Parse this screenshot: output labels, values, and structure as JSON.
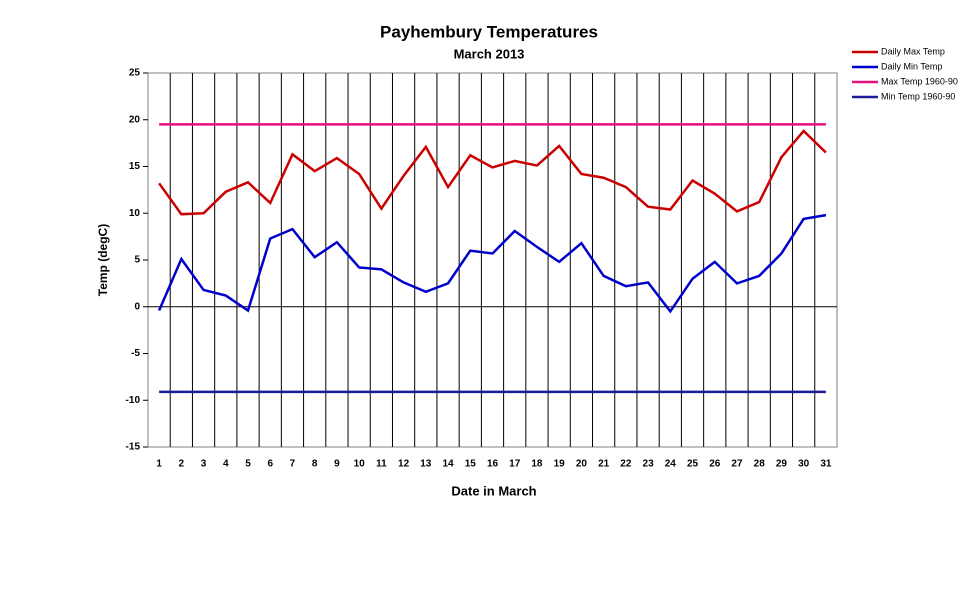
{
  "chart_data": {
    "type": "line",
    "title": "Payhembury Temperatures",
    "subtitle": "March 2013",
    "x_label": "Date in March",
    "y_label": "Temp (degC)",
    "categories": [
      "1",
      "2",
      "3",
      "4",
      "5",
      "6",
      "7",
      "8",
      "9",
      "10",
      "11",
      "12",
      "13",
      "14",
      "15",
      "16",
      "17",
      "18",
      "19",
      "20",
      "21",
      "22",
      "23",
      "24",
      "25",
      "26",
      "27",
      "28",
      "29",
      "30",
      "31"
    ],
    "series": [
      {
        "name": "Daily Max Temp",
        "color": "#cc0000",
        "values": [
          13.2,
          9.9,
          10.0,
          12.3,
          13.3,
          11.1,
          16.3,
          14.5,
          15.9,
          14.2,
          10.5,
          14.0,
          17.1,
          12.8,
          16.2,
          14.9,
          15.6,
          15.1,
          17.2,
          14.2,
          13.8,
          12.8,
          10.7,
          10.4,
          13.5,
          12.1,
          10.2,
          11.2,
          16.0,
          18.8,
          16.5
        ]
      },
      {
        "name": "Daily Min Temp",
        "color": "#0000cc",
        "values": [
          -0.4,
          5.1,
          1.8,
          1.2,
          -0.4,
          7.3,
          8.3,
          5.3,
          6.9,
          4.2,
          4.0,
          2.6,
          1.6,
          2.5,
          6.0,
          5.7,
          8.1,
          6.4,
          4.8,
          6.8,
          3.3,
          2.2,
          2.6,
          -0.5,
          3.0,
          4.8,
          2.5,
          3.3,
          5.7,
          9.4,
          9.8
        ]
      },
      {
        "name": "Max Temp 1960-90",
        "color": "#e8107f",
        "values": [
          19.5,
          19.5,
          19.5,
          19.5,
          19.5,
          19.5,
          19.5,
          19.5,
          19.5,
          19.5,
          19.5,
          19.5,
          19.5,
          19.5,
          19.5,
          19.5,
          19.5,
          19.5,
          19.5,
          19.5,
          19.5,
          19.5,
          19.5,
          19.5,
          19.5,
          19.5,
          19.5,
          19.5,
          19.5,
          19.5,
          19.5
        ]
      },
      {
        "name": "Min Temp 1960-90",
        "color": "#1a1a9a",
        "values": [
          -9.1,
          -9.1,
          -9.1,
          -9.1,
          -9.1,
          -9.1,
          -9.1,
          -9.1,
          -9.1,
          -9.1,
          -9.1,
          -9.1,
          -9.1,
          -9.1,
          -9.1,
          -9.1,
          -9.1,
          -9.1,
          -9.1,
          -9.1,
          -9.1,
          -9.1,
          -9.1,
          -9.1,
          -9.1,
          -9.1,
          -9.1,
          -9.1,
          -9.1,
          -9.1,
          -9.1
        ]
      }
    ],
    "ylim": [
      -15,
      25
    ],
    "yticks": [
      -15,
      -10,
      -5,
      0,
      5,
      10,
      15,
      20,
      25
    ],
    "legend": "top-right"
  }
}
